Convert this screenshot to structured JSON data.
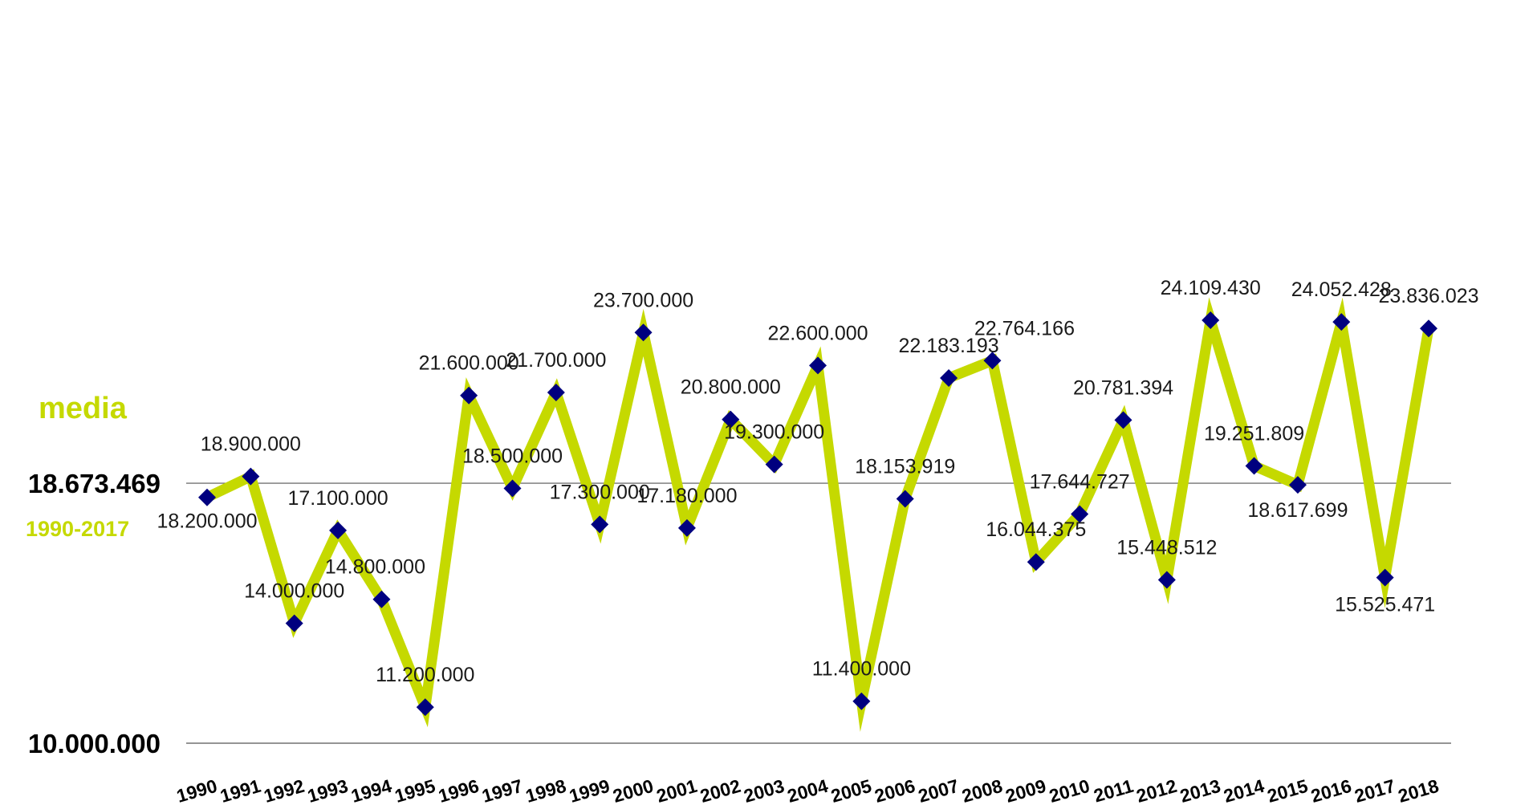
{
  "chart_data": {
    "type": "line",
    "categories": [
      "1990",
      "1991",
      "1992",
      "1993",
      "1994",
      "1995",
      "1996",
      "1997",
      "1998",
      "1999",
      "2000",
      "2001",
      "2002",
      "2003",
      "2004",
      "2005",
      "2006",
      "2007",
      "2008",
      "2009",
      "2010",
      "2011",
      "2012",
      "2013",
      "2014",
      "2015",
      "2016",
      "2017",
      "2018"
    ],
    "values": [
      18200000,
      18900000,
      14000000,
      17100000,
      14800000,
      11200000,
      21600000,
      18500000,
      21700000,
      17300000,
      23700000,
      17180000,
      20800000,
      19300000,
      22600000,
      11400000,
      18153919,
      22183193,
      22764166,
      16044375,
      17644727,
      20781394,
      15448512,
      24109430,
      19251809,
      18617699,
      24052428,
      15525471,
      23836023
    ],
    "data_labels": [
      "18.200.000",
      "18.900.000",
      "14.000.000",
      "17.100.000",
      "14.800.000",
      "11.200.000",
      "21.600.000",
      "18.500.000",
      "21.700.000",
      "17.300.000",
      "23.700.000",
      "17.180.000",
      "20.800.000",
      "19.300.000",
      "22.600.000",
      "11.400.000",
      "18.153.919",
      "22.183.193",
      "22.764.166",
      "16.044.375",
      "17.644.727",
      "20.781.394",
      "15.448.512",
      "24.109.430",
      "19.251.809",
      "18.617.699",
      "24.052.428",
      "15.525.471",
      "23.836.023"
    ],
    "y_min_label": "10.000.000",
    "ylim": [
      10000000,
      24500000
    ],
    "average": {
      "label": "media",
      "value": 18673469,
      "value_label": "18.673.469",
      "range_label": "1990-2017"
    },
    "colors": {
      "line": "#c5d900",
      "marker": "#00007f",
      "axis": "#555555",
      "avg_text": "#c5d900"
    },
    "grid": false,
    "legend": "none"
  }
}
